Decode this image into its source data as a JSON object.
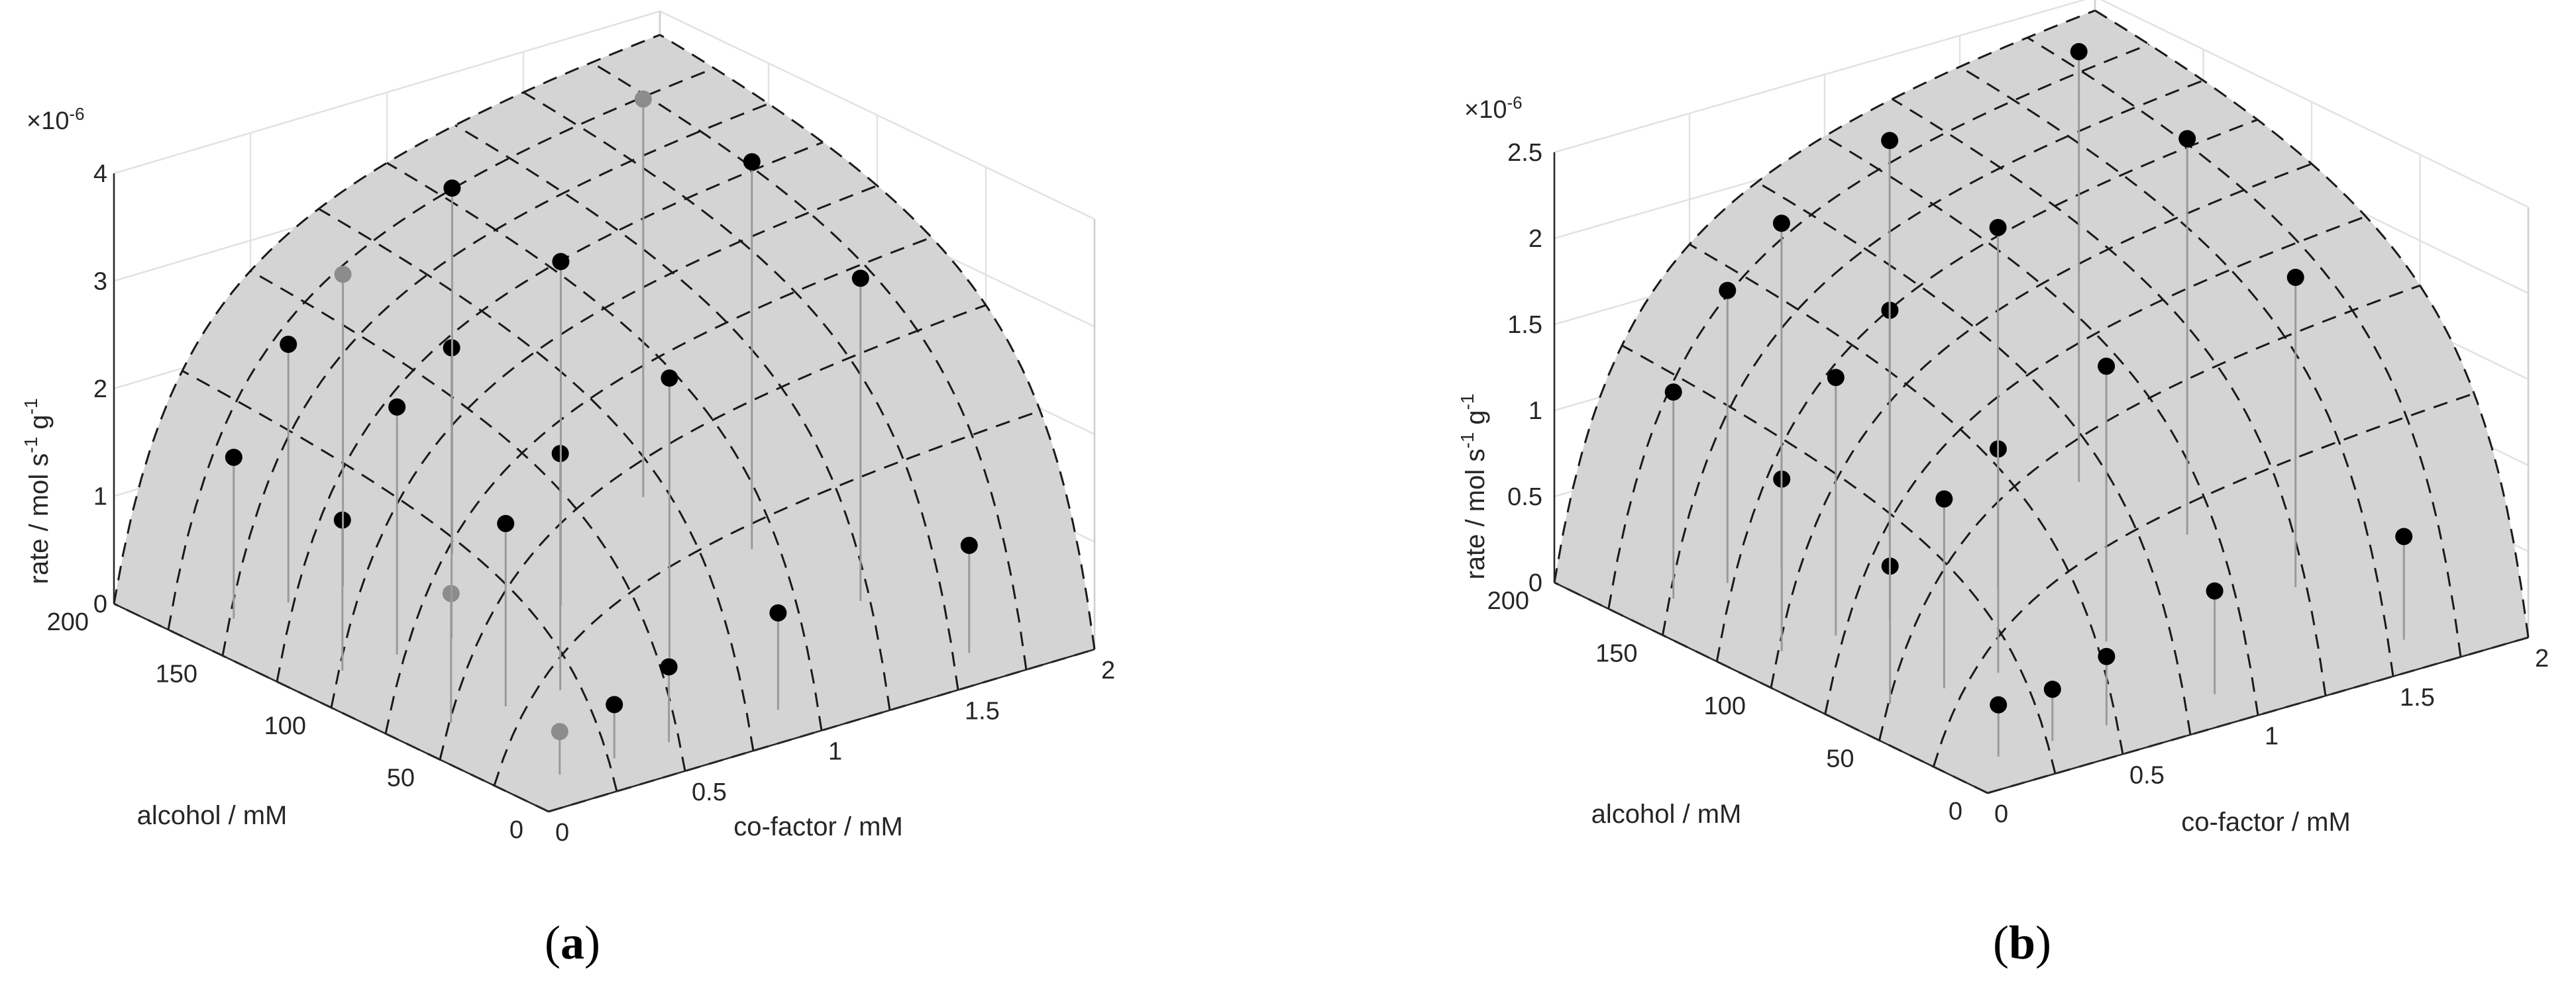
{
  "colors": {
    "surface_fill": "#d4d4d4",
    "surface_mesh": "#1a1a1a",
    "grid": "#e2e2e2",
    "axis": "#262626",
    "stem": "#9a9a9a",
    "point_black": "#000000",
    "point_gray": "#8c8c8c"
  },
  "chart_data": [
    {
      "type": "surface",
      "panel_label": "a",
      "title": "",
      "xlabel": "co-factor / mM",
      "ylabel": "alcohol / mM",
      "zlabel": "rate / mol s-1 g-1",
      "zlabel_parts": {
        "main": "rate / mol s",
        "exp1": "-1",
        "mid": " g",
        "exp2": "-1"
      },
      "zexponent": "×10-6",
      "zexponent_parts": {
        "base": "×10",
        "exp": "-6"
      },
      "xlim": [
        0,
        2
      ],
      "ylim": [
        0,
        200
      ],
      "zlim": [
        0,
        4
      ],
      "xticks": [
        "0",
        "0.5",
        "1",
        "1.5",
        "2"
      ],
      "xtick_values": [
        0,
        0.5,
        1,
        1.5,
        2
      ],
      "yticks": [
        "0",
        "50",
        "100",
        "150",
        "200"
      ],
      "ytick_values": [
        0,
        50,
        100,
        150,
        200
      ],
      "zticks": [
        "0",
        "1",
        "2",
        "3",
        "4"
      ],
      "ztick_values": [
        0,
        1,
        2,
        3,
        4
      ],
      "grid": true,
      "surface": {
        "model": "michaelis-menten",
        "vmax": 5.0,
        "km_x": 0.3,
        "km_y": 30
      },
      "points": [
        {
          "x": 0.2,
          "y": 20,
          "z": 0.4,
          "gray": true
        },
        {
          "x": 0.4,
          "y": 20,
          "z": 0.5,
          "gray": false
        },
        {
          "x": 0.6,
          "y": 20,
          "z": 0.7,
          "gray": false
        },
        {
          "x": 1.0,
          "y": 20,
          "z": 0.9,
          "gray": false
        },
        {
          "x": 1.7,
          "y": 20,
          "z": 1.0,
          "gray": false
        },
        {
          "x": 0.2,
          "y": 70,
          "z": 1.2,
          "gray": true
        },
        {
          "x": 0.4,
          "y": 70,
          "z": 1.7,
          "gray": false
        },
        {
          "x": 0.6,
          "y": 70,
          "z": 2.2,
          "gray": false
        },
        {
          "x": 1.0,
          "y": 70,
          "z": 2.6,
          "gray": false
        },
        {
          "x": 1.7,
          "y": 70,
          "z": 3.0,
          "gray": false
        },
        {
          "x": 0.2,
          "y": 120,
          "z": 1.4,
          "gray": false
        },
        {
          "x": 0.4,
          "y": 120,
          "z": 2.3,
          "gray": false
        },
        {
          "x": 0.6,
          "y": 120,
          "z": 2.7,
          "gray": false
        },
        {
          "x": 1.0,
          "y": 120,
          "z": 3.2,
          "gray": false
        },
        {
          "x": 1.7,
          "y": 120,
          "z": 3.6,
          "gray": false
        },
        {
          "x": 0.2,
          "y": 170,
          "z": 1.5,
          "gray": false
        },
        {
          "x": 0.4,
          "y": 170,
          "z": 2.4,
          "gray": false
        },
        {
          "x": 0.6,
          "y": 170,
          "z": 2.9,
          "gray": true
        },
        {
          "x": 1.0,
          "y": 170,
          "z": 3.4,
          "gray": false
        },
        {
          "x": 1.7,
          "y": 170,
          "z": 3.7,
          "gray": true
        }
      ]
    },
    {
      "type": "surface",
      "panel_label": "b",
      "title": "",
      "xlabel": "co-factor / mM",
      "ylabel": "alcohol / mM",
      "zlabel": "rate / mol s-1 g-1",
      "zlabel_parts": {
        "main": "rate / mol s",
        "exp1": "-1",
        "mid": " g",
        "exp2": "-1"
      },
      "zexponent": "×10-6",
      "zexponent_parts": {
        "base": "×10",
        "exp": "-6"
      },
      "xlim": [
        0,
        2
      ],
      "ylim": [
        0,
        200
      ],
      "zlim": [
        0,
        2.5
      ],
      "xticks": [
        "0",
        "0.5",
        "1",
        "1.5",
        "2"
      ],
      "xtick_values": [
        0,
        0.5,
        1,
        1.5,
        2
      ],
      "yticks": [
        "0",
        "50",
        "100",
        "150",
        "200"
      ],
      "ytick_values": [
        0,
        50,
        100,
        150,
        200
      ],
      "zticks": [
        "0",
        "0.5",
        "1",
        "1.5",
        "2",
        "2.5"
      ],
      "ztick_values": [
        0,
        0.5,
        1,
        1.5,
        2,
        2.5
      ],
      "grid": true,
      "surface": {
        "model": "michaelis-menten",
        "vmax": 3.2,
        "km_x": 0.3,
        "km_y": 30
      },
      "points": [
        {
          "x": 0.2,
          "y": 20,
          "z": 0.3,
          "gray": false
        },
        {
          "x": 0.4,
          "y": 20,
          "z": 0.3,
          "gray": false
        },
        {
          "x": 0.6,
          "y": 20,
          "z": 0.4,
          "gray": false
        },
        {
          "x": 1.0,
          "y": 20,
          "z": 0.6,
          "gray": false
        },
        {
          "x": 1.7,
          "y": 20,
          "z": 0.6,
          "gray": false
        },
        {
          "x": 0.2,
          "y": 70,
          "z": 0.8,
          "gray": false
        },
        {
          "x": 0.4,
          "y": 70,
          "z": 1.1,
          "gray": false
        },
        {
          "x": 0.6,
          "y": 70,
          "z": 1.3,
          "gray": false
        },
        {
          "x": 1.0,
          "y": 70,
          "z": 1.6,
          "gray": false
        },
        {
          "x": 1.7,
          "y": 70,
          "z": 1.8,
          "gray": false
        },
        {
          "x": 0.2,
          "y": 120,
          "z": 1.0,
          "gray": false
        },
        {
          "x": 0.4,
          "y": 120,
          "z": 1.5,
          "gray": false
        },
        {
          "x": 0.6,
          "y": 120,
          "z": 1.8,
          "gray": false
        },
        {
          "x": 1.0,
          "y": 120,
          "z": 2.1,
          "gray": false
        },
        {
          "x": 1.7,
          "y": 120,
          "z": 2.3,
          "gray": false
        },
        {
          "x": 0.2,
          "y": 170,
          "z": 1.2,
          "gray": false
        },
        {
          "x": 0.4,
          "y": 170,
          "z": 1.7,
          "gray": false
        },
        {
          "x": 0.6,
          "y": 170,
          "z": 2.0,
          "gray": false
        },
        {
          "x": 1.0,
          "y": 170,
          "z": 2.3,
          "gray": false
        },
        {
          "x": 1.7,
          "y": 170,
          "z": 2.5,
          "gray": false
        }
      ]
    }
  ]
}
